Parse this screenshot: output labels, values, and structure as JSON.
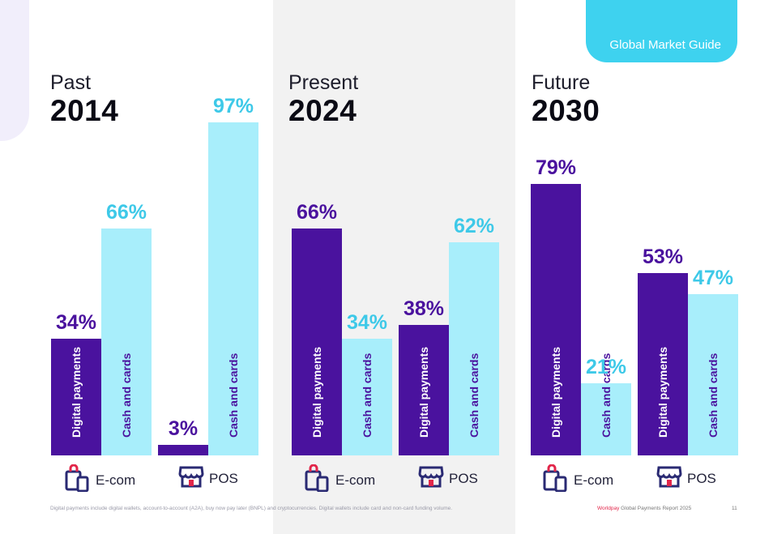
{
  "header": {
    "guide_label": "Global Market Guide"
  },
  "colors": {
    "digital": "#4a129e",
    "cash": "#a8eefb",
    "cash_text": "#3ec9e8",
    "accent_tab": "#3ed2ef"
  },
  "legend": {
    "ecom": "E-com",
    "pos": "POS"
  },
  "chart_data": [
    {
      "type": "bar",
      "title": "Past",
      "subtitle": "2014",
      "ylim": [
        0,
        100
      ],
      "groups": [
        {
          "name": "E-com",
          "bars": [
            {
              "label": "Digital payments",
              "value": 34,
              "value_label": "34%"
            },
            {
              "label": "Cash and cards",
              "value": 66,
              "value_label": "66%"
            }
          ]
        },
        {
          "name": "POS",
          "bars": [
            {
              "label": "Digital payments",
              "value": 3,
              "value_label": "3%"
            },
            {
              "label": "Cash and cards",
              "value": 97,
              "value_label": "97%"
            }
          ]
        }
      ]
    },
    {
      "type": "bar",
      "title": "Present",
      "subtitle": "2024",
      "ylim": [
        0,
        100
      ],
      "groups": [
        {
          "name": "E-com",
          "bars": [
            {
              "label": "Digital payments",
              "value": 66,
              "value_label": "66%"
            },
            {
              "label": "Cash and cards",
              "value": 34,
              "value_label": "34%"
            }
          ]
        },
        {
          "name": "POS",
          "bars": [
            {
              "label": "Digital payments",
              "value": 38,
              "value_label": "38%"
            },
            {
              "label": "Cash and cards",
              "value": 62,
              "value_label": "62%"
            }
          ]
        }
      ]
    },
    {
      "type": "bar",
      "title": "Future",
      "subtitle": "2030",
      "ylim": [
        0,
        100
      ],
      "groups": [
        {
          "name": "E-com",
          "bars": [
            {
              "label": "Digital payments",
              "value": 79,
              "value_label": "79%"
            },
            {
              "label": "Cash and cards",
              "value": 21,
              "value_label": "21%"
            }
          ]
        },
        {
          "name": "POS",
          "bars": [
            {
              "label": "Digital payments",
              "value": 53,
              "value_label": "53%"
            },
            {
              "label": "Cash and cards",
              "value": 47,
              "value_label": "47%"
            }
          ]
        }
      ]
    }
  ],
  "footer": {
    "note": "Digital payments include digital wallets, account-to-account (A2A), buy now pay later (BNPL) and cryptocurrencies. Digital wallets include card and non-card funding volume.",
    "brand": "Worldpay",
    "report": "Global Payments Report 2025",
    "page": "11"
  }
}
